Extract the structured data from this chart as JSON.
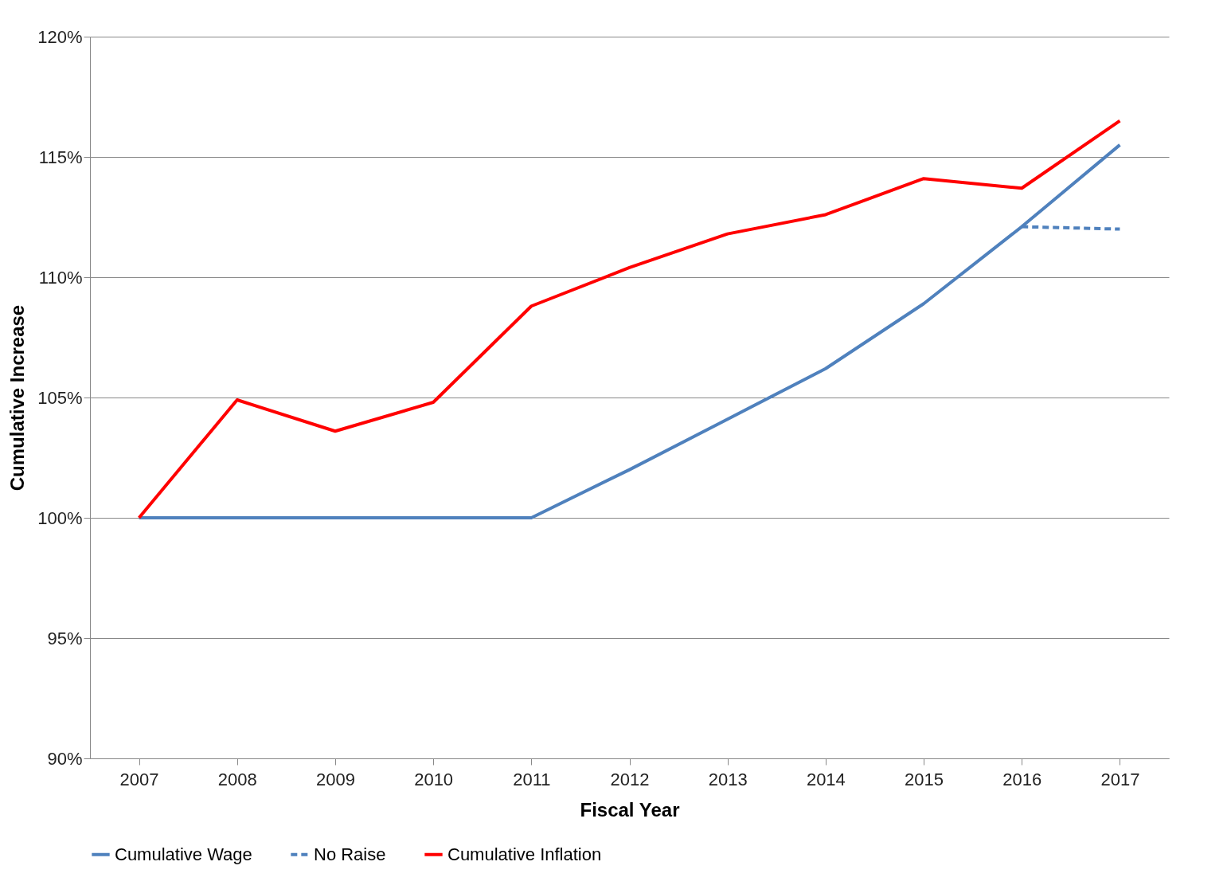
{
  "chart_data": {
    "type": "line",
    "xlabel": "Fiscal Year",
    "ylabel": "Cumulative Increase",
    "categories": [
      "2007",
      "2008",
      "2009",
      "2010",
      "2011",
      "2012",
      "2013",
      "2014",
      "2015",
      "2016",
      "2017"
    ],
    "series": [
      {
        "name": "Cumulative Wage",
        "color": "#4f81bd",
        "line_style": "solid",
        "values": [
          100,
          100,
          100,
          100,
          100,
          102.0,
          104.1,
          106.2,
          108.9,
          112.1,
          115.5
        ]
      },
      {
        "name": "No Raise",
        "color": "#4f81bd",
        "line_style": "dashed",
        "values": [
          null,
          null,
          null,
          null,
          null,
          null,
          null,
          null,
          null,
          112.1,
          112.0
        ]
      },
      {
        "name": "Cumulative Inflation",
        "color": "#ff0000",
        "line_style": "solid",
        "values": [
          100,
          104.9,
          103.6,
          104.8,
          108.8,
          110.4,
          111.8,
          112.6,
          114.1,
          113.7,
          116.5
        ]
      }
    ],
    "ylim": [
      90,
      120
    ],
    "yticks": [
      {
        "value": 90,
        "label": "90%"
      },
      {
        "value": 95,
        "label": "95%"
      },
      {
        "value": 100,
        "label": "100%"
      },
      {
        "value": 105,
        "label": "105%"
      },
      {
        "value": 110,
        "label": "110%"
      },
      {
        "value": 115,
        "label": "115%"
      },
      {
        "value": 120,
        "label": "120%"
      }
    ],
    "grid": "y",
    "legend": "bottom"
  }
}
